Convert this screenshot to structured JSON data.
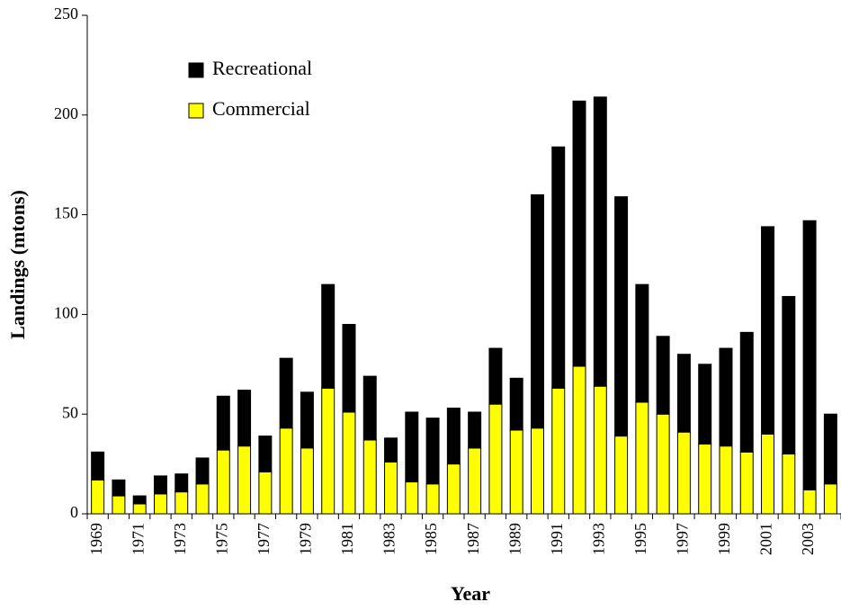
{
  "chart_data": {
    "type": "stacked_bar",
    "x_label": "Year",
    "y_label": "Landings (mtons)",
    "categories": [
      "1969",
      null,
      "1971",
      null,
      "1973",
      null,
      "1975",
      null,
      "1977",
      null,
      "1979",
      null,
      "1981",
      null,
      "1983",
      null,
      "1985",
      null,
      "1987",
      null,
      "1989",
      null,
      "1991",
      null,
      "1993",
      null,
      "1995",
      null,
      "1997",
      null,
      "1999",
      null,
      "2001",
      null,
      "2003",
      null
    ],
    "series": [
      {
        "name": "Commercial",
        "color": "#ffff00",
        "values": [
          17,
          9,
          5,
          10,
          11,
          15,
          32,
          34,
          21,
          43,
          33,
          63,
          51,
          37,
          26,
          16,
          15,
          25,
          33,
          55,
          42,
          43,
          63,
          74,
          64,
          39,
          56,
          50,
          41,
          35,
          34,
          31,
          40,
          30,
          12,
          15
        ]
      },
      {
        "name": "Recreational",
        "color": "#000000",
        "values": [
          14,
          8,
          4,
          9,
          9,
          13,
          27,
          28,
          18,
          35,
          28,
          52,
          44,
          32,
          12,
          35,
          33,
          28,
          18,
          28,
          26,
          117,
          121,
          133,
          145,
          120,
          59,
          39,
          39,
          40,
          49,
          60,
          104,
          79,
          135,
          35
        ]
      }
    ],
    "ylim": [
      0,
      250
    ],
    "yticks": [
      0,
      50,
      100,
      150,
      200,
      250
    ],
    "grid": false,
    "legend": "upper left"
  }
}
